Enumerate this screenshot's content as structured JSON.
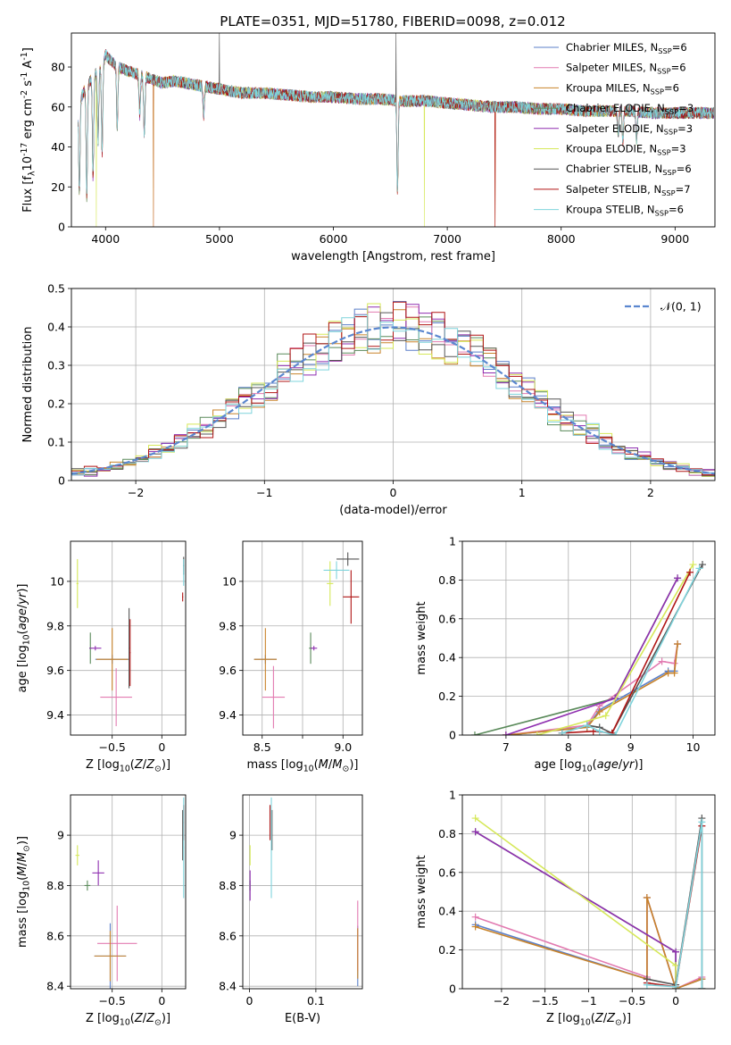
{
  "figure_title": "PLATE=0351, MJD=51780, FIBERID=0098, z=0.012",
  "series_colors": {
    "Chabrier MILES": "#5b7fc9",
    "Salpeter MILES": "#e27bb1",
    "Kroupa MILES": "#c8832a",
    "Chabrier ELODIE": "#5a8a5a",
    "Salpeter ELODIE": "#8f2fb0",
    "Kroupa ELODIE": "#d6e85a",
    "Chabrier STELIB": "#555555",
    "Salpeter STELIB": "#b01515",
    "Kroupa STELIB": "#7fd4dc"
  },
  "chart_data": [
    {
      "id": "spectrum",
      "type": "line",
      "title": "PLATE=0351, MJD=51780, FIBERID=0098, z=0.012",
      "xlabel": "wavelength [Angstrom, rest frame]",
      "ylabel": "Flux [f$_\\lambda$10$^{-17}$ erg cm$^{-2}$ s$^{-1}$ A$^{-1}$]",
      "xlim": [
        3700,
        9350
      ],
      "ylim": [
        0,
        97
      ],
      "xticks": [
        4000,
        5000,
        6000,
        7000,
        8000,
        9000
      ],
      "yticks": [
        0,
        20,
        40,
        60,
        80
      ],
      "grid": false,
      "legend_position": "top-right",
      "legend": [
        "Chabrier MILES, N$_{SSP}$=6",
        "Salpeter MILES, N$_{SSP}$=6",
        "Kroupa MILES, N$_{SSP}$=6",
        "Chabrier ELODIE, N$_{SSP}$=3",
        "Salpeter ELODIE, N$_{SSP}$=3",
        "Kroupa ELODIE, N$_{SSP}$=3",
        "Chabrier STELIB, N$_{SSP}$=6",
        "Salpeter STELIB, N$_{SSP}$=7",
        "Kroupa STELIB, N$_{SSP}$=6"
      ],
      "x": [
        3760,
        3830,
        3900,
        3960,
        4000,
        4050,
        4100,
        4200,
        4300,
        4400,
        4500,
        4600,
        4700,
        4800,
        4900,
        5000,
        5200,
        5400,
        5600,
        5800,
        6000,
        6200,
        6400,
        6600,
        6800,
        7000,
        7200,
        7400,
        7600,
        7800,
        8000,
        8200,
        8400,
        8600,
        8800,
        9000,
        9200,
        9350
      ],
      "flux": [
        62,
        70,
        76,
        80,
        86,
        83,
        80,
        78,
        76,
        74,
        72,
        73,
        72,
        71,
        70,
        69,
        67,
        67,
        66,
        65,
        65,
        64,
        64,
        63,
        63,
        62,
        61,
        60,
        60,
        59,
        59,
        58,
        58,
        58,
        57,
        57,
        57,
        57
      ],
      "absorption_lines": [
        {
          "x": 3770,
          "depth": 45
        },
        {
          "x": 3835,
          "depth": 55
        },
        {
          "x": 3890,
          "depth": 50
        },
        {
          "x": 3934,
          "depth": 35
        },
        {
          "x": 3970,
          "depth": 45
        },
        {
          "x": 4102,
          "depth": 30
        },
        {
          "x": 4300,
          "depth": 20
        },
        {
          "x": 4340,
          "depth": 30
        },
        {
          "x": 4861,
          "depth": 15
        },
        {
          "x": 6563,
          "depth": 45
        },
        {
          "x": 8500,
          "depth": 12
        },
        {
          "x": 8542,
          "depth": 15
        },
        {
          "x": 8662,
          "depth": 14
        }
      ],
      "glitches": [
        {
          "x": 3920,
          "y_low": 0,
          "series": "Kroupa ELODIE"
        },
        {
          "x": 4420,
          "y_low": 0,
          "series": "Salpeter MILES"
        },
        {
          "x": 4420,
          "y_low": 0,
          "series": "Kroupa MILES"
        },
        {
          "x": 5000,
          "y_high": 97,
          "series": "Chabrier STELIB"
        },
        {
          "x": 6550,
          "y_high": 97,
          "series": "Chabrier STELIB"
        },
        {
          "x": 6800,
          "y_low": 0,
          "series": "Kroupa ELODIE"
        },
        {
          "x": 7420,
          "y_low": 0,
          "series": "Salpeter STELIB"
        },
        {
          "x": 7420,
          "y_low": 0,
          "series": "Kroupa MILES"
        }
      ]
    },
    {
      "id": "residuals",
      "type": "histogram",
      "xlabel": "(data-model)/error",
      "ylabel": "Normed distribution",
      "xlim": [
        -2.5,
        2.5
      ],
      "ylim": [
        0,
        0.5
      ],
      "xticks": [
        -2,
        -1,
        0,
        1,
        2
      ],
      "yticks": [
        0.0,
        0.1,
        0.2,
        0.3,
        0.4,
        0.5
      ],
      "grid": true,
      "legend_position": "top-right",
      "legend": [
        "$\\mathcal{N}(0,1)$"
      ],
      "bin_width": 0.1,
      "bin_start": -2.5
    },
    {
      "id": "age_vs_Z",
      "type": "scatter",
      "xlabel": "Z [log$_{10}$($Z/Z_\\odot$)]",
      "ylabel": "age  [log$_{10}$($age/yr$)]",
      "xlim": [
        -0.92,
        0.24
      ],
      "ylim": [
        9.31,
        10.18
      ],
      "xticks": [
        -0.5,
        0.0
      ],
      "yticks": [
        9.4,
        9.6,
        9.8,
        10.0
      ],
      "grid": true,
      "points": [
        {
          "s": "Chabrier MILES",
          "x": -0.5,
          "y": 9.65,
          "xe": 0.17,
          "ye": 0.02
        },
        {
          "s": "Salpeter MILES",
          "x": -0.46,
          "y": 9.48,
          "xe": 0.16,
          "ye": 0.13
        },
        {
          "s": "Kroupa MILES",
          "x": -0.5,
          "y": 9.65,
          "xe": 0.16,
          "ye": 0.14
        },
        {
          "s": "Chabrier ELODIE",
          "x": -0.72,
          "y": 9.7,
          "xe": 0.01,
          "ye": 0.07
        },
        {
          "s": "Salpeter ELODIE",
          "x": -0.67,
          "y": 9.7,
          "xe": 0.06,
          "ye": 0.01
        },
        {
          "s": "Kroupa ELODIE",
          "x": -0.85,
          "y": 9.99,
          "xe": 0.01,
          "ye": 0.11
        },
        {
          "s": "Chabrier STELIB",
          "x": 0.22,
          "y": 10.07,
          "xe": 0.005,
          "ye": 0.04
        },
        {
          "s": "Salpeter STELIB",
          "x": 0.21,
          "y": 9.93,
          "xe": 0.005,
          "ye": 0.02
        },
        {
          "s": "Kroupa STELIB",
          "x": 0.22,
          "y": 10.04,
          "xe": 0.005,
          "ye": 0.06
        },
        {
          "s": "Chabrier STELIB",
          "x": -0.33,
          "y": 9.7,
          "xe": 0.005,
          "ye": 0.18
        },
        {
          "s": "Salpeter STELIB",
          "x": -0.32,
          "y": 9.68,
          "xe": 0.005,
          "ye": 0.15
        }
      ]
    },
    {
      "id": "age_vs_mass",
      "type": "scatter",
      "xlabel": "mass [log$_{10}$($M/M_\\odot$)]",
      "ylabel": "",
      "xlim": [
        8.38,
        9.12
      ],
      "ylim": [
        9.31,
        10.18
      ],
      "xticks": [
        8.5,
        8.75,
        9.0
      ],
      "xticklabels": [
        "8.5",
        "",
        "9.0"
      ],
      "yticks": [
        9.4,
        9.6,
        9.8,
        10.0
      ],
      "grid": true,
      "points": [
        {
          "s": "Chabrier MILES",
          "x": 8.52,
          "y": 9.65,
          "xe": 0.07,
          "ye": 0.02
        },
        {
          "s": "Salpeter MILES",
          "x": 8.57,
          "y": 9.48,
          "xe": 0.07,
          "ye": 0.14
        },
        {
          "s": "Kroupa MILES",
          "x": 8.52,
          "y": 9.65,
          "xe": 0.07,
          "ye": 0.14
        },
        {
          "s": "Chabrier ELODIE",
          "x": 8.8,
          "y": 9.7,
          "xe": 0.01,
          "ye": 0.07
        },
        {
          "s": "Salpeter ELODIE",
          "x": 8.82,
          "y": 9.7,
          "xe": 0.02,
          "ye": 0.01
        },
        {
          "s": "Kroupa ELODIE",
          "x": 8.92,
          "y": 9.99,
          "xe": 0.02,
          "ye": 0.1
        },
        {
          "s": "Chabrier STELIB",
          "x": 9.03,
          "y": 10.1,
          "xe": 0.07,
          "ye": 0.03
        },
        {
          "s": "Salpeter STELIB",
          "x": 9.05,
          "y": 9.93,
          "xe": 0.05,
          "ye": 0.12
        },
        {
          "s": "Kroupa STELIB",
          "x": 8.96,
          "y": 10.05,
          "xe": 0.08,
          "ye": 0.04
        }
      ]
    },
    {
      "id": "mass_weight_vs_age",
      "type": "line",
      "xlabel": "age  [log$_{10}$($age/yr$)]",
      "ylabel": "mass weight",
      "xlim": [
        6.3,
        10.35
      ],
      "ylim": [
        0,
        1.0
      ],
      "xticks": [
        7,
        8,
        9,
        10
      ],
      "yticks": [
        0.0,
        0.2,
        0.4,
        0.6,
        0.8,
        1.0
      ],
      "grid": true,
      "series": [
        {
          "name": "Chabrier MILES",
          "x": [
            7.0,
            8.3,
            8.5,
            9.6,
            9.7,
            9.75
          ],
          "y": [
            0.0,
            0.04,
            0.13,
            0.33,
            0.33,
            0.47
          ]
        },
        {
          "name": "Salpeter MILES",
          "x": [
            7.0,
            8.3,
            8.5,
            9.5,
            9.7,
            9.75
          ],
          "y": [
            0.0,
            0.05,
            0.15,
            0.38,
            0.37,
            0.47
          ]
        },
        {
          "name": "Kroupa MILES",
          "x": [
            7.0,
            8.3,
            8.5,
            9.6,
            9.7,
            9.75
          ],
          "y": [
            0.0,
            0.04,
            0.12,
            0.32,
            0.32,
            0.47
          ]
        },
        {
          "name": "Chabrier ELODIE",
          "x": [
            6.5,
            8.75,
            9.75
          ],
          "y": [
            0.0,
            0.19,
            0.81
          ]
        },
        {
          "name": "Salpeter ELODIE",
          "x": [
            7.0,
            8.75,
            9.75
          ],
          "y": [
            0.0,
            0.19,
            0.81
          ]
        },
        {
          "name": "Kroupa ELODIE",
          "x": [
            7.5,
            8.6,
            10.0
          ],
          "y": [
            0.0,
            0.1,
            0.88
          ]
        },
        {
          "name": "Chabrier STELIB",
          "x": [
            7.9,
            8.3,
            8.5,
            8.7,
            10.15
          ],
          "y": [
            0.01,
            0.05,
            0.04,
            0.01,
            0.88
          ]
        },
        {
          "name": "Salpeter STELIB",
          "x": [
            7.9,
            8.4,
            8.7,
            9.95
          ],
          "y": [
            0.01,
            0.02,
            0.01,
            0.84
          ]
        },
        {
          "name": "Kroupa STELIB",
          "x": [
            7.9,
            8.3,
            8.5,
            8.75,
            10.1
          ],
          "y": [
            0.01,
            0.05,
            0.02,
            0.0,
            0.86
          ]
        }
      ]
    },
    {
      "id": "mass_vs_Z",
      "type": "scatter",
      "xlabel": "Z [log$_{10}$($Z/Z_\\odot$)]",
      "ylabel": "mass [log$_{10}$($M/M_\\odot$)]",
      "xlim": [
        -0.92,
        0.24
      ],
      "ylim": [
        8.39,
        9.16
      ],
      "xticks": [
        -0.5,
        0.0
      ],
      "yticks": [
        8.4,
        8.6,
        8.8,
        9.0
      ],
      "grid": true,
      "points": [
        {
          "s": "Chabrier MILES",
          "x": -0.52,
          "y": 8.52,
          "xe": 0.16,
          "ye": 0.13
        },
        {
          "s": "Salpeter MILES",
          "x": -0.45,
          "y": 8.57,
          "xe": 0.2,
          "ye": 0.15
        },
        {
          "s": "Kroupa MILES",
          "x": -0.52,
          "y": 8.52,
          "xe": 0.16,
          "ye": 0.1
        },
        {
          "s": "Chabrier ELODIE",
          "x": -0.75,
          "y": 8.8,
          "xe": 0.03,
          "ye": 0.02
        },
        {
          "s": "Salpeter ELODIE",
          "x": -0.64,
          "y": 8.85,
          "xe": 0.06,
          "ye": 0.05
        },
        {
          "s": "Kroupa ELODIE",
          "x": -0.85,
          "y": 8.92,
          "xe": 0.02,
          "ye": 0.04
        },
        {
          "s": "Chabrier STELIB",
          "x": 0.21,
          "y": 9.0,
          "xe": 0.005,
          "ye": 0.1
        },
        {
          "s": "Salpeter STELIB",
          "x": 0.22,
          "y": 9.05,
          "xe": 0.005,
          "ye": 0.07
        },
        {
          "s": "Kroupa STELIB",
          "x": 0.22,
          "y": 8.95,
          "xe": 0.005,
          "ye": 0.2
        }
      ]
    },
    {
      "id": "mass_vs_EBV",
      "type": "scatter",
      "xlabel": "E(B-V)",
      "ylabel": "",
      "xlim": [
        -0.01,
        0.17
      ],
      "ylim": [
        8.39,
        9.16
      ],
      "xticks": [
        0.0,
        0.1
      ],
      "yticks": [
        8.4,
        8.6,
        8.8,
        9.0
      ],
      "grid": true,
      "points": [
        {
          "s": "Chabrier MILES",
          "x": 0.163,
          "y": 8.52,
          "xe": 0.0,
          "ye": 0.12
        },
        {
          "s": "Salpeter MILES",
          "x": 0.163,
          "y": 8.6,
          "xe": 0.0,
          "ye": 0.14
        },
        {
          "s": "Kroupa MILES",
          "x": 0.163,
          "y": 8.53,
          "xe": 0.0,
          "ye": 0.1
        },
        {
          "s": "Chabrier ELODIE",
          "x": 0.001,
          "y": 8.8,
          "xe": 0.0,
          "ye": 0.02
        },
        {
          "s": "Salpeter ELODIE",
          "x": 0.001,
          "y": 8.8,
          "xe": 0.0,
          "ye": 0.06
        },
        {
          "s": "Kroupa ELODIE",
          "x": 0.001,
          "y": 8.92,
          "xe": 0.0,
          "ye": 0.04
        },
        {
          "s": "Chabrier STELIB",
          "x": 0.034,
          "y": 9.02,
          "xe": 0.0,
          "ye": 0.08
        },
        {
          "s": "Salpeter STELIB",
          "x": 0.031,
          "y": 9.05,
          "xe": 0.0,
          "ye": 0.07
        },
        {
          "s": "Kroupa STELIB",
          "x": 0.033,
          "y": 8.95,
          "xe": 0.0,
          "ye": 0.2
        }
      ]
    },
    {
      "id": "mass_weight_vs_Z",
      "type": "line",
      "xlabel": "Z [log$_{10}$($Z/Z_\\odot$)]",
      "ylabel": "mass weight",
      "xlim": [
        -2.45,
        0.45
      ],
      "ylim": [
        0,
        1.0
      ],
      "xticks": [
        -2.0,
        -1.5,
        -1.0,
        -0.5,
        0.0
      ],
      "yticks": [
        0.0,
        0.2,
        0.4,
        0.6,
        0.8,
        1.0
      ],
      "grid": true,
      "series": [
        {
          "name": "Chabrier MILES",
          "x": [
            -2.3,
            -0.33,
            -0.33,
            0.0,
            0.3,
            0.3
          ],
          "y": [
            0.33,
            0.05,
            0.47,
            0.0,
            0.05,
            0.0
          ]
        },
        {
          "name": "Salpeter MILES",
          "x": [
            -2.3,
            -0.33,
            -0.33,
            0.0,
            0.3,
            0.3
          ],
          "y": [
            0.37,
            0.06,
            0.47,
            0.0,
            0.06,
            0.0
          ]
        },
        {
          "name": "Kroupa MILES",
          "x": [
            -2.3,
            -0.33,
            -0.33,
            0.0,
            0.3,
            0.3
          ],
          "y": [
            0.32,
            0.05,
            0.47,
            0.0,
            0.05,
            0.0
          ]
        },
        {
          "name": "Chabrier ELODIE",
          "x": [
            -2.3,
            0.0,
            0.0
          ],
          "y": [
            0.81,
            0.19,
            0.0
          ]
        },
        {
          "name": "Salpeter ELODIE",
          "x": [
            -2.3,
            0.0,
            0.0
          ],
          "y": [
            0.81,
            0.19,
            0.0
          ]
        },
        {
          "name": "Kroupa ELODIE",
          "x": [
            -2.3,
            0.0,
            0.0
          ],
          "y": [
            0.88,
            0.12,
            0.0
          ]
        },
        {
          "name": "Chabrier STELIB",
          "x": [
            -0.33,
            0.0,
            0.3,
            0.3
          ],
          "y": [
            0.05,
            0.02,
            0.88,
            0.0
          ]
        },
        {
          "name": "Salpeter STELIB",
          "x": [
            -0.33,
            0.0,
            0.3
          ],
          "y": [
            0.03,
            0.01,
            0.84
          ]
        },
        {
          "name": "Kroupa STELIB",
          "x": [
            -0.33,
            0.0,
            0.3,
            0.3
          ],
          "y": [
            0.02,
            0.01,
            0.86,
            0.0
          ]
        }
      ]
    }
  ]
}
